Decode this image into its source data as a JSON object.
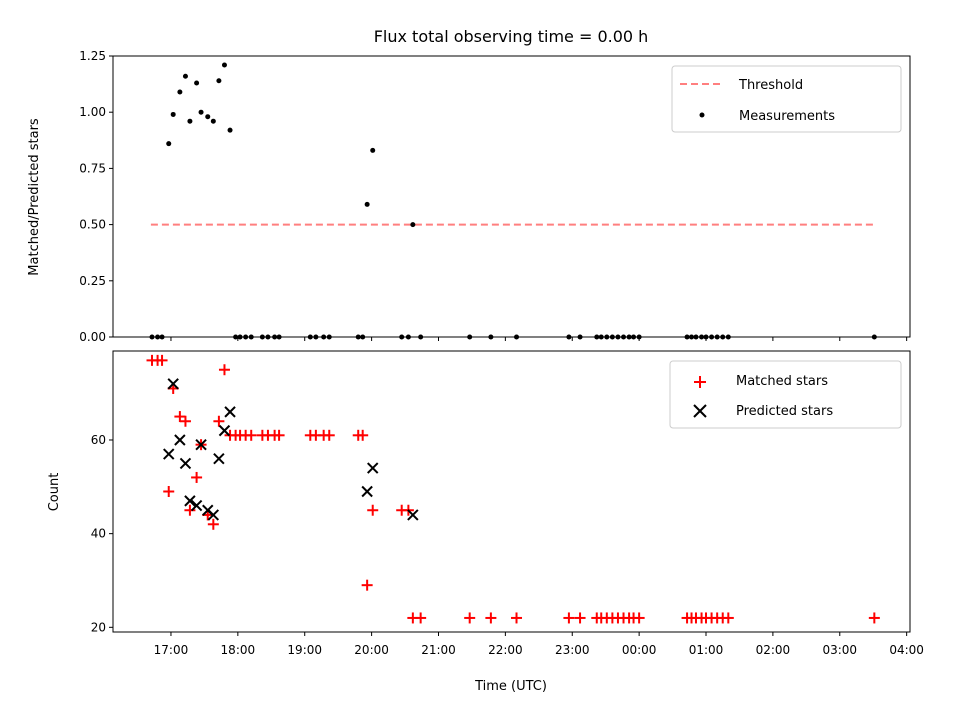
{
  "colors": {
    "measurement": "#000000",
    "threshold": "#ff7f7f",
    "matched": "#ff0000",
    "predicted": "#000000"
  },
  "chart_data": [
    {
      "type": "scatter",
      "title": "Flux total observing time = 0.00 h",
      "xlabel": "",
      "ylabel": "Matched/Predicted stars",
      "ylim": [
        0,
        1.25
      ],
      "xlim": [
        "16:08",
        "04:03"
      ],
      "yticks": [
        "0.00",
        "0.25",
        "0.50",
        "0.75",
        "1.00",
        "1.25"
      ],
      "legend_position": "top-right",
      "series": [
        {
          "name": "Threshold",
          "kind": "dashed-line",
          "x": [
            "16:42",
            "03:30"
          ],
          "y": [
            0.5,
            0.5
          ]
        },
        {
          "name": "Measurements",
          "kind": "points",
          "x": [
            "16:43",
            "16:48",
            "16:52",
            "16:58",
            "17:02",
            "17:08",
            "17:13",
            "17:17",
            "17:23",
            "17:27",
            "17:33",
            "17:38",
            "17:43",
            "17:48",
            "17:53",
            "17:58",
            "18:02",
            "18:07",
            "18:12",
            "18:22",
            "18:27",
            "18:33",
            "18:37",
            "19:05",
            "19:10",
            "19:17",
            "19:22",
            "19:48",
            "19:52",
            "19:56",
            "20:01",
            "20:27",
            "20:33",
            "20:37",
            "20:44",
            "21:28",
            "21:47",
            "22:10",
            "22:57",
            "23:07",
            "23:22",
            "23:26",
            "23:31",
            "23:36",
            "23:41",
            "23:46",
            "23:51",
            "23:55",
            "00:00",
            "00:43",
            "00:47",
            "00:51",
            "00:56",
            "01:00",
            "01:05",
            "01:10",
            "01:15",
            "01:20",
            "03:31"
          ],
          "y": [
            0,
            0,
            0,
            0.86,
            0.99,
            1.09,
            1.16,
            0.96,
            1.13,
            1.0,
            0.98,
            0.96,
            1.14,
            1.21,
            0.92,
            0,
            0,
            0,
            0,
            0,
            0,
            0,
            0,
            0,
            0,
            0,
            0,
            0,
            0,
            0.59,
            0.83,
            0,
            0,
            0.5,
            0,
            0,
            0,
            0,
            0,
            0,
            0,
            0,
            0,
            0,
            0,
            0,
            0,
            0,
            0,
            0,
            0,
            0,
            0,
            0,
            0,
            0,
            0,
            0,
            0
          ]
        }
      ]
    },
    {
      "type": "scatter",
      "title": "",
      "xlabel": "Time (UTC)",
      "ylabel": "Count",
      "ylim": [
        19,
        79
      ],
      "xlim": [
        "16:08",
        "04:03"
      ],
      "yticks": [
        "20",
        "40",
        "60"
      ],
      "xticks": [
        "17:00",
        "18:00",
        "19:00",
        "20:00",
        "21:00",
        "22:00",
        "23:00",
        "00:00",
        "01:00",
        "02:00",
        "03:00",
        "04:00"
      ],
      "legend_position": "top-right",
      "series": [
        {
          "name": "Matched stars",
          "marker": "+",
          "x": [
            "16:43",
            "16:48",
            "16:52",
            "16:58",
            "17:02",
            "17:08",
            "17:13",
            "17:17",
            "17:23",
            "17:27",
            "17:33",
            "17:38",
            "17:43",
            "17:48",
            "17:53",
            "17:58",
            "18:02",
            "18:07",
            "18:12",
            "18:22",
            "18:27",
            "18:33",
            "18:37",
            "19:05",
            "19:10",
            "19:17",
            "19:22",
            "19:48",
            "19:52",
            "19:56",
            "20:01",
            "20:27",
            "20:33",
            "20:37",
            "20:44",
            "21:28",
            "21:47",
            "22:10",
            "22:57",
            "23:07",
            "23:22",
            "23:26",
            "23:31",
            "23:36",
            "23:41",
            "23:46",
            "23:51",
            "23:55",
            "00:00",
            "00:43",
            "00:47",
            "00:51",
            "00:56",
            "01:00",
            "01:05",
            "01:10",
            "01:15",
            "01:20",
            "03:31"
          ],
          "y": [
            77,
            77,
            77,
            49,
            71,
            65,
            64,
            45,
            52,
            59,
            44,
            42,
            64,
            75,
            61,
            61,
            61,
            61,
            61,
            61,
            61,
            61,
            61,
            61,
            61,
            61,
            61,
            61,
            61,
            29,
            45,
            45,
            45,
            22,
            22,
            22,
            22,
            22,
            22,
            22,
            22,
            22,
            22,
            22,
            22,
            22,
            22,
            22,
            22,
            22,
            22,
            22,
            22,
            22,
            22,
            22,
            22,
            22,
            22
          ]
        },
        {
          "name": "Predicted stars",
          "marker": "x",
          "x": [
            "16:58",
            "17:02",
            "17:08",
            "17:13",
            "17:17",
            "17:23",
            "17:27",
            "17:33",
            "17:38",
            "17:43",
            "17:48",
            "17:53",
            "19:56",
            "20:01",
            "20:37"
          ],
          "y": [
            57,
            72,
            60,
            55,
            47,
            46,
            59,
            45,
            44,
            56,
            62,
            66,
            49,
            54,
            44
          ]
        }
      ]
    }
  ]
}
